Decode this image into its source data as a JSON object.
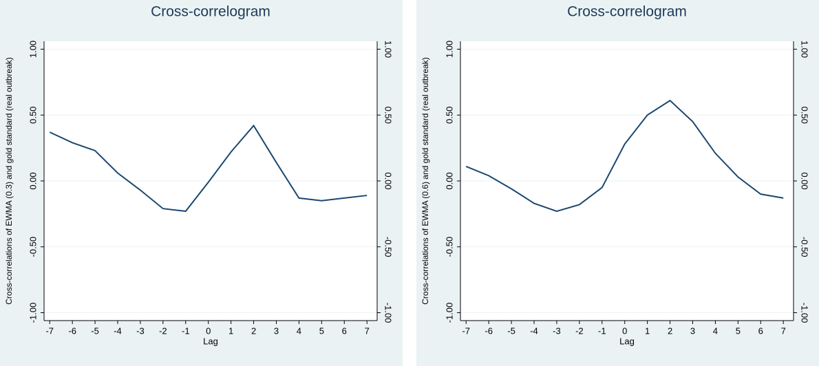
{
  "chart_data": [
    {
      "type": "line",
      "title": "Cross-correlogram",
      "x_label": "Lag",
      "y_label": "Cross-correlations of EWMA (0.3) and gold standard (real outbreak)",
      "x": [
        -7,
        -6,
        -5,
        -4,
        -3,
        -2,
        -1,
        0,
        1,
        2,
        3,
        4,
        5,
        6,
        7
      ],
      "values": [
        0.37,
        0.29,
        0.23,
        0.06,
        -0.07,
        -0.21,
        -0.23,
        -0.01,
        0.22,
        0.42,
        0.14,
        -0.13,
        -0.15,
        -0.13,
        -0.11
      ],
      "color": "#1a476f",
      "grid": true,
      "xlim": [
        -7.25,
        7.45
      ],
      "xticks": [
        -7,
        -6,
        -5,
        -4,
        -3,
        -2,
        -1,
        0,
        1,
        2,
        3,
        4,
        5,
        6,
        7
      ],
      "ylim": [
        -1.06,
        1.06
      ],
      "yticks": [
        {
          "value": -1,
          "label": "-1.00"
        },
        {
          "value": -0.5,
          "label": "-0.50"
        },
        {
          "value": 0,
          "label": "0.00"
        },
        {
          "value": 0.5,
          "label": "0.50"
        },
        {
          "value": 1,
          "label": "1.00"
        }
      ]
    },
    {
      "type": "line",
      "title": "Cross-correlogram",
      "x_label": "Lag",
      "y_label": "Cross-correlations of EWMA (0.6) and gold standard (real outbreak)",
      "x": [
        -7,
        -6,
        -5,
        -4,
        -3,
        -2,
        -1,
        0,
        1,
        2,
        3,
        4,
        5,
        6,
        7
      ],
      "values": [
        0.11,
        0.04,
        -0.06,
        -0.17,
        -0.23,
        -0.18,
        -0.05,
        0.28,
        0.5,
        0.61,
        0.45,
        0.21,
        0.03,
        -0.1,
        -0.13
      ],
      "color": "#1a476f",
      "grid": true,
      "xlim": [
        -7.25,
        7.45
      ],
      "xticks": [
        -7,
        -6,
        -5,
        -4,
        -3,
        -2,
        -1,
        0,
        1,
        2,
        3,
        4,
        5,
        6,
        7
      ],
      "ylim": [
        -1.06,
        1.06
      ],
      "yticks": [
        {
          "value": -1,
          "label": "-1.00"
        },
        {
          "value": -0.5,
          "label": "-0.50"
        },
        {
          "value": 0,
          "label": "0.00"
        },
        {
          "value": 0.5,
          "label": "0.50"
        },
        {
          "value": 1,
          "label": "1.00"
        }
      ]
    }
  ]
}
